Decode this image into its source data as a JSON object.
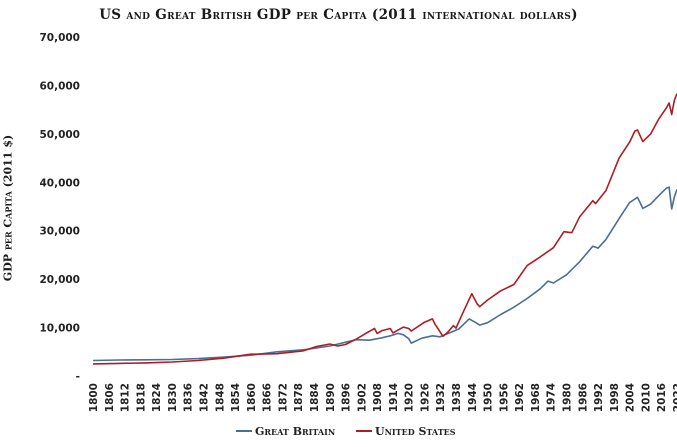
{
  "chart_data": {
    "type": "line",
    "title": "US and Great British GDP per Capita (2011 international dollars)",
    "xlabel": "",
    "ylabel": "GDP per Capita (2011 $)",
    "xlim": [
      1800,
      2022
    ],
    "ylim": [
      0,
      70000
    ],
    "y_ticks": [
      0,
      10000,
      20000,
      30000,
      40000,
      50000,
      60000,
      70000
    ],
    "y_tick_labels": [
      "-",
      "10,000",
      "20,000",
      "30,000",
      "40,000",
      "50,000",
      "60,000",
      "70,000"
    ],
    "x_tick_labels": [
      "1800",
      "1806",
      "1812",
      "1818",
      "1824",
      "1830",
      "1836",
      "1842",
      "1848",
      "1854",
      "1860",
      "1866",
      "1872",
      "1878",
      "1884",
      "1890",
      "1896",
      "1902",
      "1908",
      "1914",
      "1920",
      "1926",
      "1932",
      "1938",
      "1944",
      "1950",
      "1956",
      "1962",
      "1968",
      "1974",
      "1980",
      "1986",
      "1992",
      "1998",
      "2004",
      "2010",
      "2016",
      "2022"
    ],
    "grid": false,
    "legend_position": "bottom",
    "series": [
      {
        "name": "Great Britain",
        "color": "#4a6f95",
        "x": [
          1800,
          1810,
          1820,
          1830,
          1840,
          1850,
          1860,
          1870,
          1880,
          1890,
          1900,
          1905,
          1910,
          1913,
          1916,
          1918,
          1920,
          1921,
          1925,
          1929,
          1932,
          1936,
          1939,
          1943,
          1945,
          1947,
          1950,
          1955,
          1960,
          1965,
          1970,
          1973,
          1975,
          1980,
          1985,
          1990,
          1992,
          1995,
          2000,
          2004,
          2007,
          2009,
          2012,
          2015,
          2018,
          2019,
          2020,
          2021,
          2022
        ],
        "y": [
          3200,
          3300,
          3350,
          3400,
          3600,
          3900,
          4300,
          5000,
          5400,
          6200,
          7500,
          7400,
          7900,
          8300,
          8800,
          8500,
          7700,
          6800,
          7800,
          8300,
          8100,
          9000,
          9700,
          11800,
          11200,
          10500,
          11000,
          12700,
          14200,
          16000,
          18000,
          19600,
          19200,
          20900,
          23600,
          26800,
          26400,
          28200,
          32500,
          35800,
          36900,
          34600,
          35500,
          37200,
          38800,
          39000,
          34500,
          37000,
          38500
        ]
      },
      {
        "name": "United States",
        "color": "#b01c22",
        "x": [
          1800,
          1810,
          1820,
          1830,
          1840,
          1850,
          1860,
          1870,
          1880,
          1885,
          1890,
          1893,
          1896,
          1900,
          1905,
          1907,
          1908,
          1910,
          1913,
          1914,
          1918,
          1920,
          1921,
          1926,
          1929,
          1930,
          1931,
          1933,
          1935,
          1937,
          1938,
          1941,
          1944,
          1946,
          1947,
          1950,
          1955,
          1960,
          1965,
          1970,
          1975,
          1979,
          1982,
          1985,
          1990,
          1991,
          1995,
          2000,
          2004,
          2006,
          2007,
          2009,
          2012,
          2015,
          2018,
          2019,
          2020,
          2021,
          2022
        ],
        "y": [
          2500,
          2600,
          2700,
          2900,
          3200,
          3700,
          4500,
          4600,
          5200,
          6100,
          6600,
          6200,
          6500,
          7600,
          9200,
          9800,
          8800,
          9400,
          9800,
          8900,
          10100,
          9800,
          9300,
          11100,
          11800,
          10700,
          9900,
          8200,
          9100,
          10400,
          9900,
          13500,
          17000,
          14900,
          14300,
          15700,
          17600,
          18900,
          22800,
          24600,
          26500,
          29800,
          29600,
          32900,
          36200,
          35600,
          38300,
          45000,
          48300,
          50600,
          50800,
          48400,
          50000,
          53000,
          55400,
          56400,
          54000,
          57000,
          58300
        ]
      }
    ]
  },
  "legend": {
    "items": [
      {
        "label": "Great Britain",
        "color": "#4a6f95"
      },
      {
        "label": "United States",
        "color": "#b01c22"
      }
    ]
  }
}
